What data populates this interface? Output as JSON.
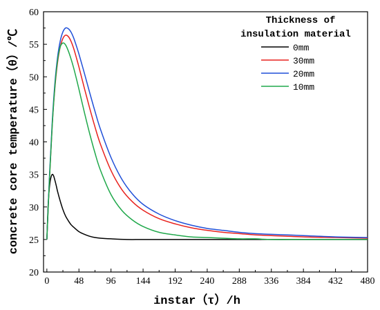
{
  "chart_data": {
    "type": "line",
    "title": "",
    "xlabel": "instar（τ）/h",
    "ylabel": "concrete core temperature（θ）/℃",
    "xlim": [
      -5,
      480
    ],
    "ylim": [
      20,
      60
    ],
    "xticks": [
      0,
      48,
      96,
      144,
      192,
      240,
      288,
      336,
      384,
      432,
      480
    ],
    "yticks": [
      20,
      25,
      30,
      35,
      40,
      45,
      50,
      55,
      60
    ],
    "grid": false,
    "legend": {
      "title_line1": "Thickness of",
      "title_line2": "insulation material",
      "placement": "top-right"
    },
    "series": [
      {
        "name": "0mm",
        "color": "#000000",
        "x": [
          0,
          2,
          4,
          6,
          8,
          10,
          12,
          14,
          16,
          20,
          24,
          28,
          32,
          36,
          40,
          48,
          56,
          64,
          72,
          80,
          96,
          120,
          144,
          192,
          240,
          288,
          336,
          384,
          432,
          480
        ],
        "y": [
          25,
          30.5,
          33.2,
          34.5,
          35.0,
          34.8,
          34.1,
          33.3,
          32.4,
          30.9,
          29.6,
          28.6,
          27.9,
          27.3,
          26.9,
          26.2,
          25.8,
          25.5,
          25.3,
          25.2,
          25.1,
          25.0,
          25.0,
          25.0,
          25.0,
          25.0,
          25.0,
          25.0,
          25.0,
          25.0
        ]
      },
      {
        "name": "30mm",
        "color": "#e8211d",
        "x": [
          0,
          4,
          8,
          12,
          16,
          20,
          24,
          28,
          32,
          36,
          40,
          44,
          48,
          56,
          64,
          72,
          80,
          96,
          112,
          128,
          144,
          168,
          192,
          216,
          240,
          264,
          288,
          312,
          336,
          384,
          432,
          480
        ],
        "y": [
          25,
          34.5,
          42.5,
          48.3,
          52.2,
          54.6,
          55.9,
          56.4,
          56.2,
          55.5,
          54.4,
          53.0,
          51.5,
          48.3,
          45.2,
          42.3,
          39.7,
          35.6,
          32.7,
          30.8,
          29.5,
          28.2,
          27.4,
          26.8,
          26.4,
          26.1,
          25.9,
          25.7,
          25.6,
          25.4,
          25.3,
          25.2
        ]
      },
      {
        "name": "20mm",
        "color": "#1f4fd8",
        "x": [
          0,
          4,
          8,
          12,
          16,
          20,
          24,
          28,
          32,
          36,
          40,
          44,
          48,
          56,
          64,
          72,
          80,
          96,
          112,
          128,
          144,
          168,
          192,
          216,
          240,
          264,
          288,
          312,
          336,
          384,
          432,
          480
        ],
        "y": [
          25,
          35.0,
          43.0,
          49.0,
          53.0,
          55.5,
          56.9,
          57.5,
          57.4,
          56.9,
          56.0,
          54.8,
          53.5,
          50.6,
          47.6,
          44.7,
          42.0,
          37.6,
          34.3,
          32.0,
          30.4,
          28.9,
          27.9,
          27.2,
          26.7,
          26.4,
          26.1,
          25.9,
          25.8,
          25.6,
          25.4,
          25.3
        ]
      },
      {
        "name": "10mm",
        "color": "#1fa84a",
        "x": [
          0,
          4,
          8,
          12,
          16,
          20,
          24,
          28,
          32,
          36,
          40,
          44,
          48,
          56,
          64,
          72,
          80,
          96,
          112,
          128,
          144,
          168,
          192,
          216,
          240,
          264,
          288,
          312,
          336,
          384,
          432,
          480
        ],
        "y": [
          25,
          34.5,
          42.5,
          48.5,
          52.5,
          54.6,
          55.2,
          54.9,
          54.0,
          52.8,
          51.4,
          49.8,
          48.1,
          44.6,
          41.3,
          38.3,
          35.7,
          31.9,
          29.5,
          28.0,
          27.0,
          26.1,
          25.7,
          25.4,
          25.3,
          25.2,
          25.1,
          25.1,
          25.0,
          25.0,
          25.0,
          25.0
        ]
      }
    ]
  }
}
